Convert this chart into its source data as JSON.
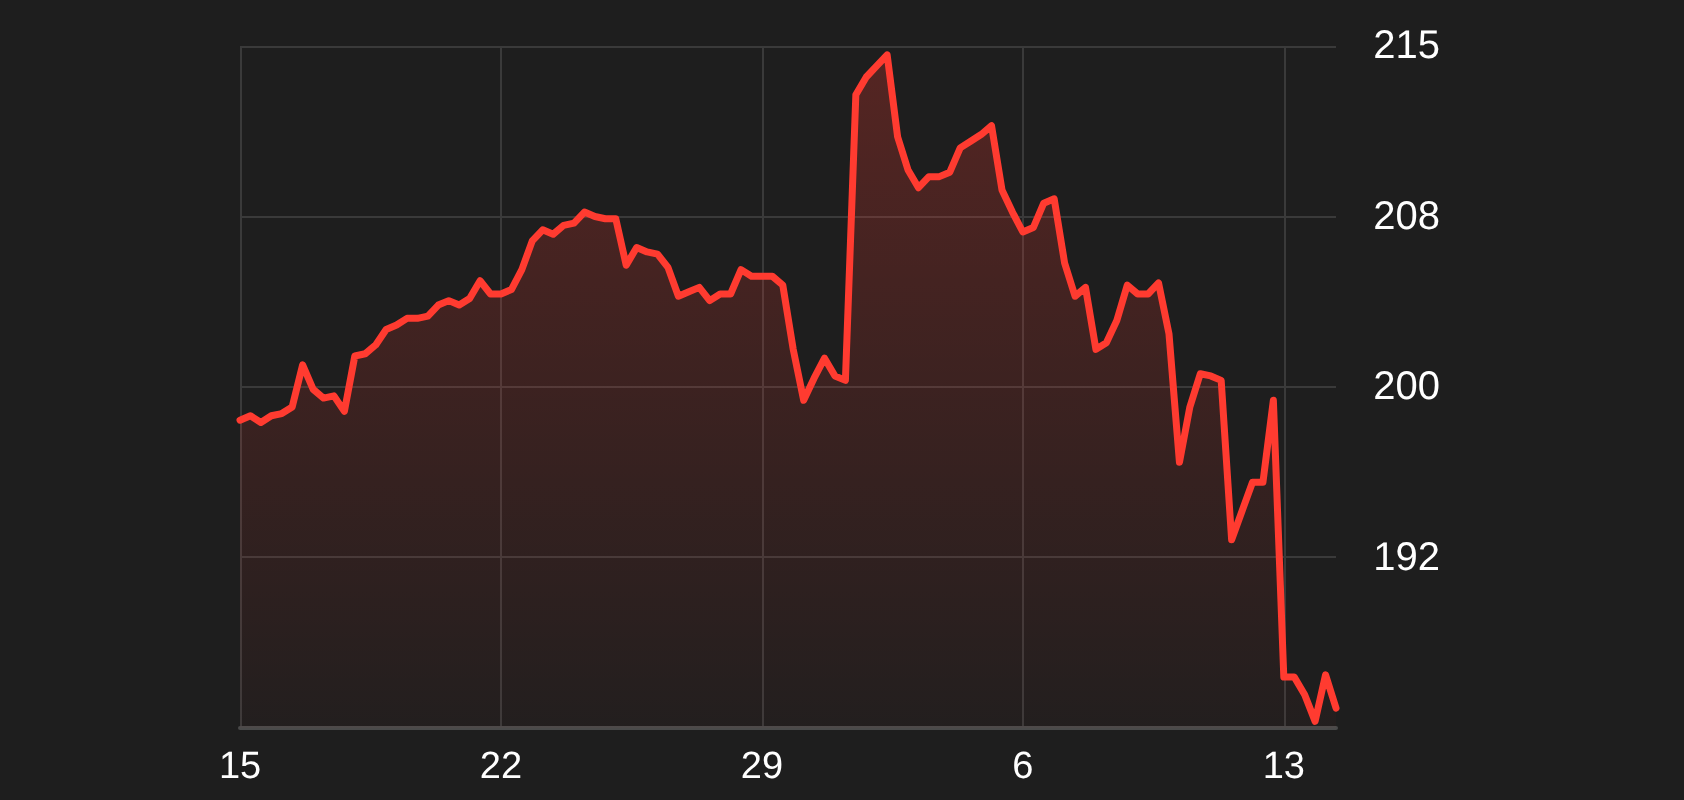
{
  "chart_data": {
    "type": "area",
    "categories": [
      "15",
      null,
      null,
      null,
      null,
      null,
      null,
      null,
      null,
      null,
      null,
      null,
      null,
      null,
      null,
      null,
      null,
      null,
      null,
      null,
      null,
      null,
      null,
      null,
      null,
      "22",
      null,
      null,
      null,
      null,
      null,
      null,
      null,
      null,
      null,
      null,
      null,
      null,
      null,
      null,
      null,
      null,
      null,
      null,
      null,
      null,
      null,
      null,
      null,
      null,
      "29",
      null,
      null,
      null,
      null,
      null,
      null,
      null,
      null,
      null,
      null,
      null,
      null,
      null,
      null,
      null,
      null,
      null,
      null,
      null,
      null,
      null,
      null,
      null,
      null,
      "6",
      null,
      null,
      null,
      null,
      null,
      null,
      null,
      null,
      null,
      null,
      null,
      null,
      null,
      null,
      null,
      null,
      null,
      null,
      null,
      null,
      null,
      null,
      null,
      null,
      "13",
      null,
      null,
      null,
      null,
      null
    ],
    "series": [
      {
        "color": "#ff3b30",
        "values": [
          198.5,
          198.7,
          198.4,
          198.7,
          198.8,
          199.1,
          201.0,
          199.9,
          199.5,
          199.6,
          198.9,
          201.4,
          201.5,
          201.9,
          202.6,
          202.8,
          203.1,
          203.1,
          203.2,
          203.7,
          203.9,
          203.7,
          204.0,
          204.8,
          204.2,
          204.2,
          204.4,
          205.3,
          206.6,
          207.1,
          206.9,
          207.3,
          207.4,
          207.9,
          207.7,
          207.6,
          207.6,
          205.5,
          206.3,
          206.1,
          206.0,
          205.4,
          204.1,
          204.3,
          204.5,
          203.9,
          204.2,
          204.2,
          205.3,
          205.0,
          205.0,
          205.0,
          204.6,
          201.7,
          199.4,
          200.4,
          201.3,
          200.5,
          200.3,
          213.2,
          214.0,
          214.5,
          215.0,
          211.3,
          209.8,
          209.0,
          209.5,
          209.5,
          209.7,
          210.8,
          211.1,
          211.4,
          211.8,
          208.9,
          207.9,
          207.0,
          207.2,
          208.3,
          208.5,
          205.6,
          204.1,
          204.5,
          201.7,
          202.0,
          203.0,
          204.6,
          204.2,
          204.2,
          204.7,
          202.4,
          196.6,
          199.1,
          200.6,
          200.5,
          200.3,
          193.1,
          194.4,
          195.7,
          195.7,
          199.4,
          186.9,
          186.9,
          186.1,
          184.9,
          187.0,
          185.5
        ]
      }
    ],
    "ylim": [
      184.6,
      215.4
    ],
    "yticks": [
      {
        "value": 192.3,
        "label": "192"
      },
      200,
      {
        "value": 207.7,
        "label": "208"
      },
      {
        "value": 215.4,
        "label": "215"
      }
    ],
    "grid": true,
    "marker": "none",
    "line_style": "solid"
  }
}
